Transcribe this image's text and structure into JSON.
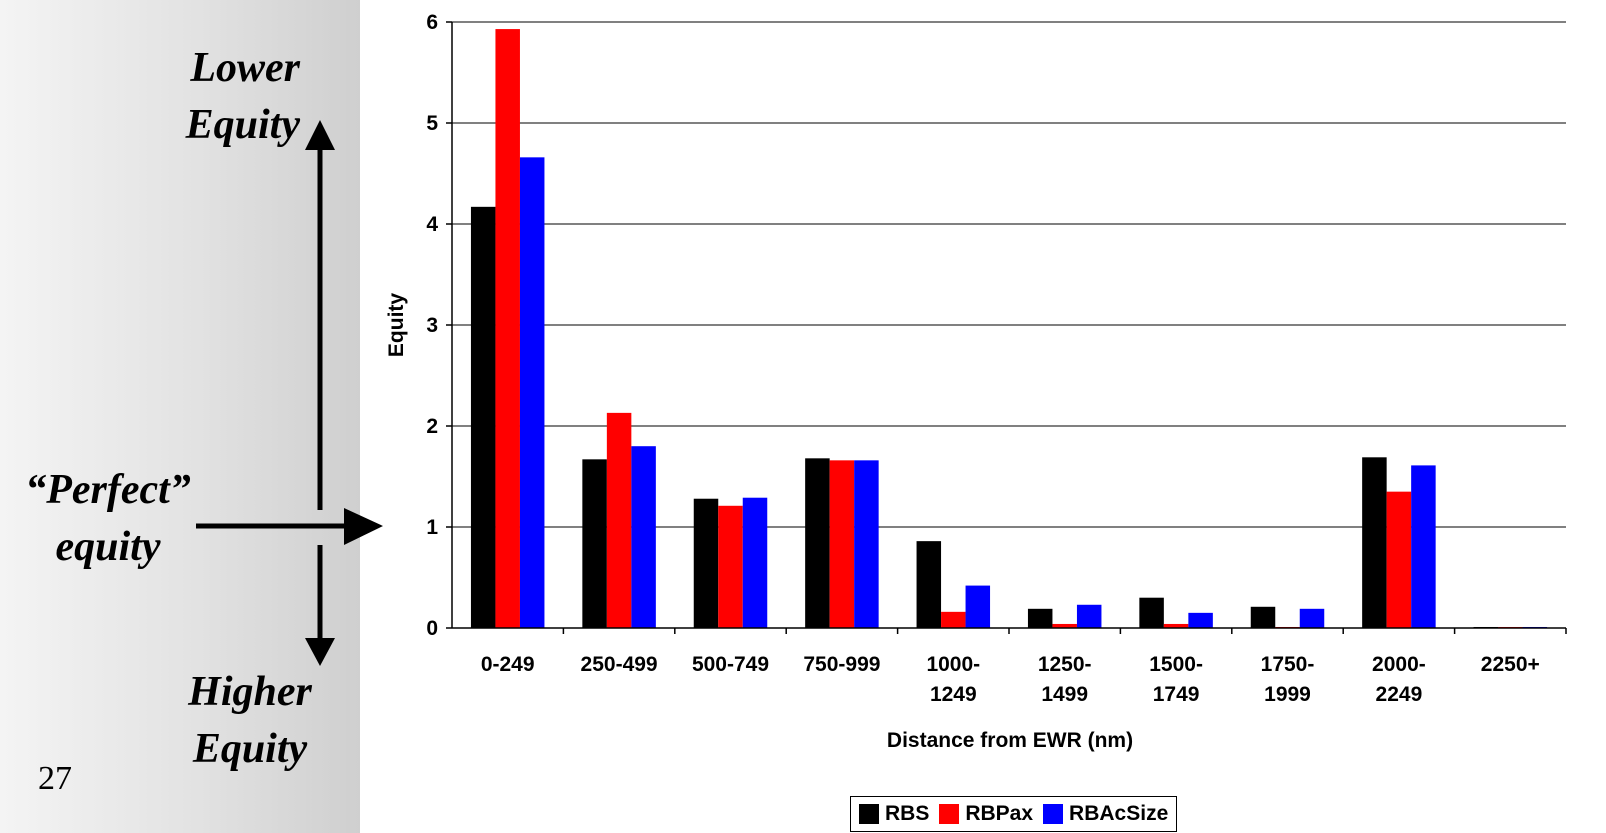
{
  "annotations": {
    "top_line1": "Lower",
    "top_line2": "Equity",
    "bottom_line1": "Higher",
    "bottom_line2": "Equity",
    "middle_line1": "“Perfect”",
    "middle_line2": "equity",
    "page_number": "27"
  },
  "chart_data": {
    "type": "bar",
    "title": "",
    "xlabel": "Distance from EWR (nm)",
    "ylabel": "Equity",
    "ylim": [
      0,
      6
    ],
    "yticks": [
      0,
      1,
      2,
      3,
      4,
      5,
      6
    ],
    "grid": true,
    "legend_position": "bottom",
    "categories": [
      "0-249",
      "250-499",
      "500-749",
      "750-999",
      "1000-\n1249",
      "1250-\n1499",
      "1500-\n1749",
      "1750-\n1999",
      "2000-\n2249",
      "2250+"
    ],
    "series": [
      {
        "name": "RBS",
        "color": "#000000",
        "values": [
          4.17,
          1.67,
          1.28,
          1.68,
          0.86,
          0.19,
          0.3,
          0.21,
          1.69,
          0.01
        ]
      },
      {
        "name": "RBPax",
        "color": "#ff0000",
        "values": [
          5.93,
          2.13,
          1.21,
          1.66,
          0.16,
          0.04,
          0.04,
          0.01,
          1.35,
          0.01
        ]
      },
      {
        "name": "RBAcSize",
        "color": "#0000ff",
        "values": [
          4.66,
          1.8,
          1.29,
          1.66,
          0.42,
          0.23,
          0.15,
          0.19,
          1.61,
          0.01
        ]
      }
    ]
  }
}
